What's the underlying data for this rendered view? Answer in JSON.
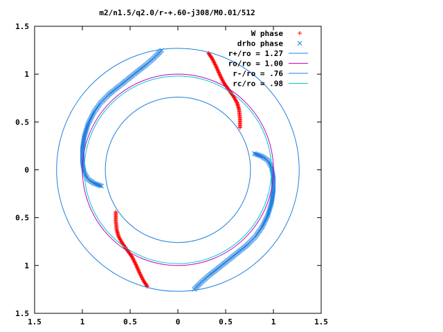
{
  "chart_data": {
    "type": "scatter",
    "title": "m2/n1.5/q2.0/r-+.60-j308/M0.01/512",
    "xlim": [
      -1.5,
      1.5
    ],
    "ylim": [
      -1.5,
      1.5
    ],
    "x_ticks": [
      -1.5,
      -1,
      -0.5,
      0,
      0.5,
      1,
      1.5
    ],
    "y_ticks": [
      -1.5,
      -1,
      -0.5,
      0,
      0.5,
      1,
      1.5
    ],
    "x_tick_labels": [
      "1.5",
      "1",
      "0.5",
      "0",
      "0.5",
      "1",
      "1.5"
    ],
    "y_tick_labels": [
      "1.5",
      "1",
      "0.5",
      "0",
      "0.5",
      "1",
      "1.5"
    ],
    "grid": false,
    "legend_position": "top-right",
    "series": [
      {
        "name": "W phase",
        "kind": "points",
        "marker": "plus",
        "color": "#ff0000",
        "arms": [
          {
            "x": [
              0.32,
              0.36,
              0.4,
              0.44,
              0.48,
              0.53,
              0.58,
              0.62,
              0.64,
              0.65,
              0.65
            ],
            "y": [
              1.22,
              1.16,
              1.08,
              0.99,
              0.91,
              0.84,
              0.77,
              0.7,
              0.63,
              0.54,
              0.44
            ]
          },
          {
            "x": [
              -0.32,
              -0.36,
              -0.4,
              -0.44,
              -0.48,
              -0.53,
              -0.58,
              -0.62,
              -0.64,
              -0.65,
              -0.65
            ],
            "y": [
              -1.22,
              -1.16,
              -1.08,
              -0.99,
              -0.91,
              -0.84,
              -0.77,
              -0.7,
              -0.63,
              -0.54,
              -0.44
            ]
          }
        ]
      },
      {
        "name": "drho phase",
        "kind": "points",
        "marker": "cross",
        "color": "#1e7fe0",
        "arms": [
          {
            "x": [
              -0.17,
              -0.25,
              -0.33,
              -0.42,
              -0.52,
              -0.62,
              -0.72,
              -0.81,
              -0.88,
              -0.94,
              -0.98,
              -1.0,
              -1.0,
              -0.98,
              -0.94,
              -0.88,
              -0.8
            ],
            "y": [
              1.25,
              1.17,
              1.1,
              1.03,
              0.95,
              0.87,
              0.79,
              0.7,
              0.6,
              0.48,
              0.35,
              0.22,
              0.08,
              -0.03,
              -0.1,
              -0.14,
              -0.17
            ]
          },
          {
            "x": [
              0.17,
              0.25,
              0.33,
              0.42,
              0.52,
              0.62,
              0.72,
              0.81,
              0.88,
              0.94,
              0.98,
              1.0,
              1.0,
              0.98,
              0.94,
              0.88,
              0.8
            ],
            "y": [
              -1.25,
              -1.17,
              -1.1,
              -1.03,
              -0.95,
              -0.87,
              -0.79,
              -0.7,
              -0.6,
              -0.48,
              -0.35,
              -0.22,
              -0.08,
              0.03,
              0.1,
              0.14,
              0.17
            ]
          }
        ]
      },
      {
        "name": "r+/ro = 1.27",
        "kind": "circle",
        "radius": 1.27,
        "color": "#1e7fe0"
      },
      {
        "name": "ro/ro = 1.00",
        "kind": "circle",
        "radius": 1.0,
        "color": "#c000c0"
      },
      {
        "name": "r-/ro = .76",
        "kind": "circle",
        "radius": 0.76,
        "color": "#1e7fe0"
      },
      {
        "name": "rc/ro = .98",
        "kind": "circle",
        "radius": 0.98,
        "color": "#00c8c8"
      }
    ]
  }
}
